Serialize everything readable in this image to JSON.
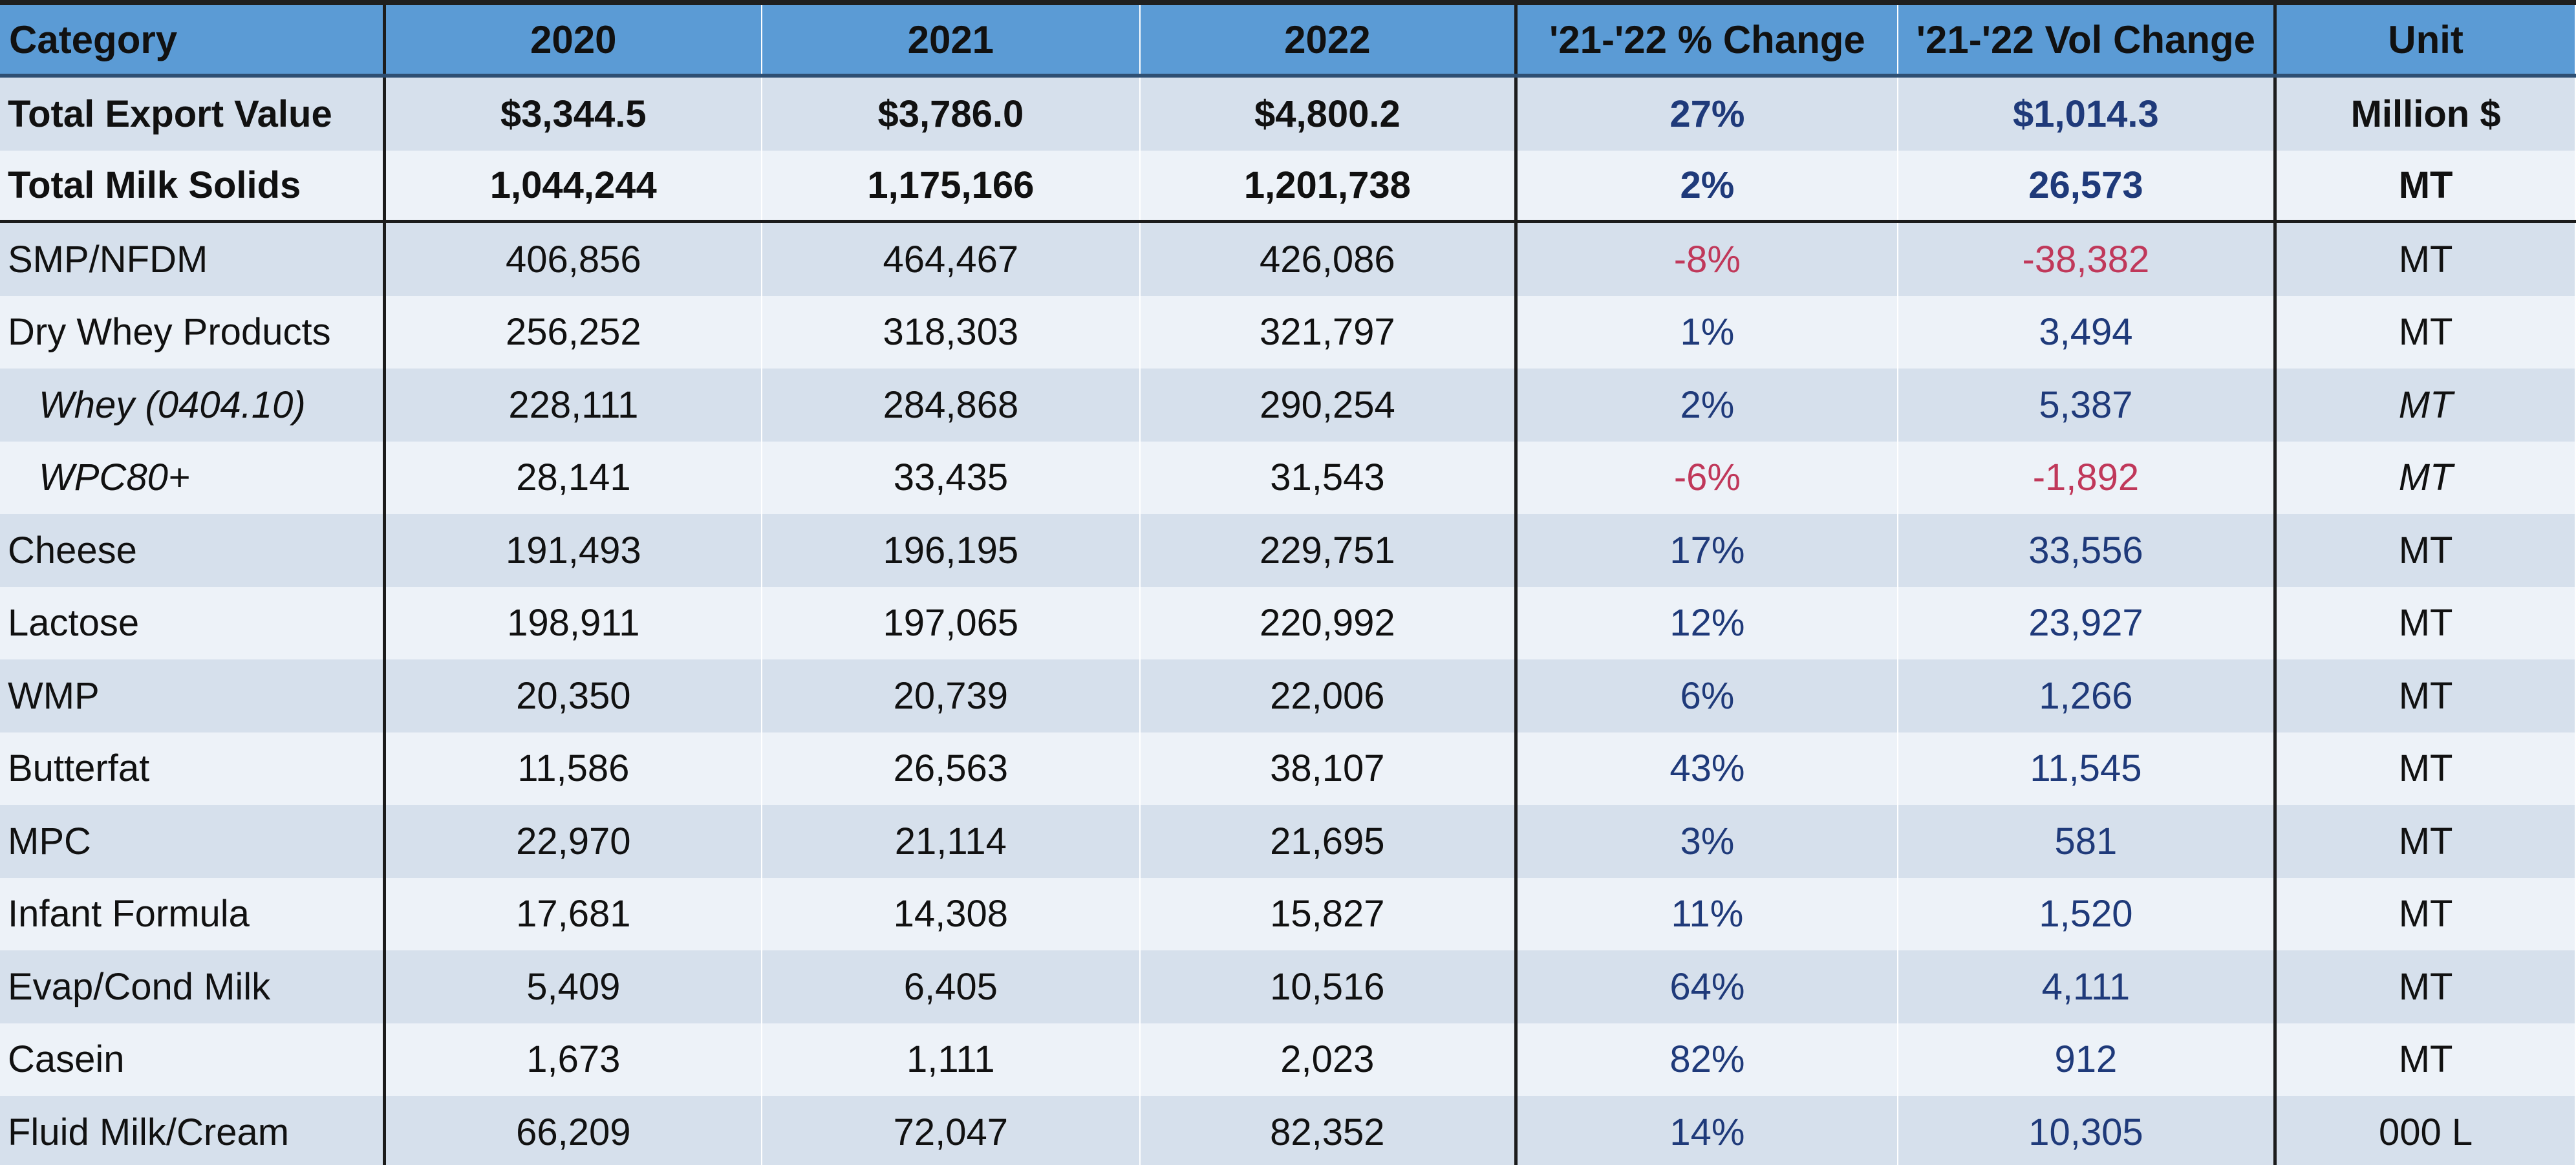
{
  "table": {
    "headers": [
      "Category",
      "2020",
      "2021",
      "2022",
      "'21-'22 % Change",
      "'21-'22 Vol Change",
      "Unit"
    ],
    "rows": [
      {
        "category": "Total Export Value",
        "y2020": "$3,344.5",
        "y2021": "$3,786.0",
        "y2022": "$4,800.2",
        "pct": "27%",
        "vol": "$1,014.3",
        "unit": "Million $"
      },
      {
        "category": "Total Milk Solids",
        "y2020": "1,044,244",
        "y2021": "1,175,166",
        "y2022": "1,201,738",
        "pct": "2%",
        "vol": "26,573",
        "unit": "MT"
      },
      {
        "category": "SMP/NFDM",
        "y2020": "406,856",
        "y2021": "464,467",
        "y2022": "426,086",
        "pct": "-8%",
        "vol": "-38,382",
        "unit": "MT"
      },
      {
        "category": "Dry Whey Products",
        "y2020": "256,252",
        "y2021": "318,303",
        "y2022": "321,797",
        "pct": "1%",
        "vol": "3,494",
        "unit": "MT"
      },
      {
        "category": "Whey (0404.10)",
        "y2020": "228,111",
        "y2021": "284,868",
        "y2022": "290,254",
        "pct": "2%",
        "vol": "5,387",
        "unit": "MT"
      },
      {
        "category": "WPC80+",
        "y2020": "28,141",
        "y2021": "33,435",
        "y2022": "31,543",
        "pct": "-6%",
        "vol": "-1,892",
        "unit": "MT"
      },
      {
        "category": "Cheese",
        "y2020": "191,493",
        "y2021": "196,195",
        "y2022": "229,751",
        "pct": "17%",
        "vol": "33,556",
        "unit": "MT"
      },
      {
        "category": "Lactose",
        "y2020": "198,911",
        "y2021": "197,065",
        "y2022": "220,992",
        "pct": "12%",
        "vol": "23,927",
        "unit": "MT"
      },
      {
        "category": "WMP",
        "y2020": "20,350",
        "y2021": "20,739",
        "y2022": "22,006",
        "pct": "6%",
        "vol": "1,266",
        "unit": "MT"
      },
      {
        "category": "Butterfat",
        "y2020": "11,586",
        "y2021": "26,563",
        "y2022": "38,107",
        "pct": "43%",
        "vol": "11,545",
        "unit": "MT"
      },
      {
        "category": "MPC",
        "y2020": "22,970",
        "y2021": "21,114",
        "y2022": "21,695",
        "pct": "3%",
        "vol": "581",
        "unit": "MT"
      },
      {
        "category": "Infant Formula",
        "y2020": "17,681",
        "y2021": "14,308",
        "y2022": "15,827",
        "pct": "11%",
        "vol": "1,520",
        "unit": "MT"
      },
      {
        "category": "Evap/Cond Milk",
        "y2020": "5,409",
        "y2021": "6,405",
        "y2022": "10,516",
        "pct": "64%",
        "vol": "4,111",
        "unit": "MT"
      },
      {
        "category": "Casein",
        "y2020": "1,673",
        "y2021": "1,111",
        "y2022": "2,023",
        "pct": "82%",
        "vol": "912",
        "unit": "MT"
      },
      {
        "category": "Fluid Milk/Cream",
        "y2020": "66,209",
        "y2021": "72,047",
        "y2022": "82,352",
        "pct": "14%",
        "vol": "10,305",
        "unit": "000 L"
      }
    ]
  },
  "colors": {
    "header_bg": "#5b9bd5",
    "band_dark": "#d6e0ec",
    "band_light": "#edf2f8",
    "positive_text": "#1f3a7a",
    "negative_text": "#c0385a"
  }
}
